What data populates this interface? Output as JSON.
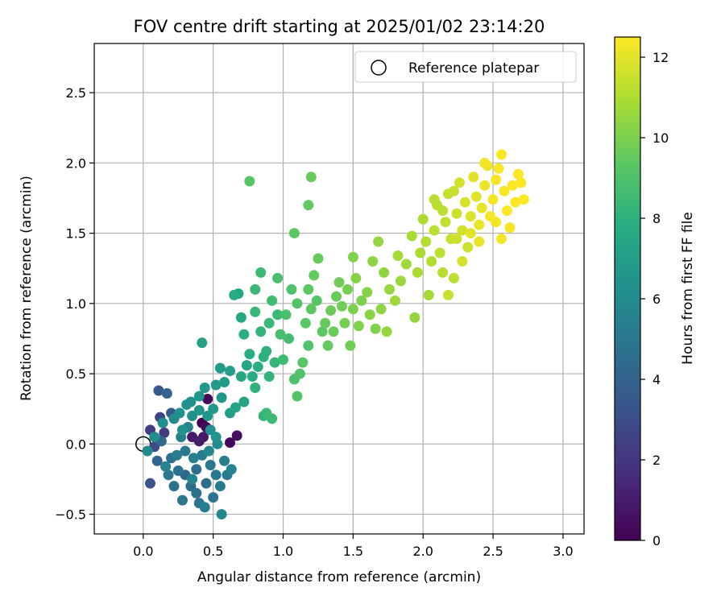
{
  "chart_data": {
    "type": "scatter",
    "title": "FOV centre drift starting at 2025/01/02 23:14:20",
    "xlabel": "Angular distance from reference (arcmin)",
    "ylabel": "Rotation from reference (arcmin)",
    "xlim": [
      -0.35,
      3.15
    ],
    "ylim": [
      -0.64,
      2.85
    ],
    "xticks": [
      0.0,
      0.5,
      1.0,
      1.5,
      2.0,
      2.5,
      3.0
    ],
    "xtick_labels": [
      "0.0",
      "0.5",
      "1.0",
      "1.5",
      "2.0",
      "2.5",
      "3.0"
    ],
    "yticks": [
      -0.5,
      0.0,
      0.5,
      1.0,
      1.5,
      2.0,
      2.5
    ],
    "ytick_labels": [
      "−0.5",
      "0.0",
      "0.5",
      "1.0",
      "1.5",
      "2.0",
      "2.5"
    ],
    "grid": true,
    "legend": {
      "placement": "top-right",
      "entries": [
        {
          "label": "Reference platepar",
          "marker": "open-circle",
          "x": 0.0,
          "y": 0.0
        }
      ]
    },
    "colorbar": {
      "label": "Hours from first FF file",
      "range": [
        0,
        12.5
      ],
      "ticks": [
        0,
        2,
        4,
        6,
        8,
        10,
        12
      ],
      "tick_labels": [
        "0",
        "2",
        "4",
        "6",
        "8",
        "10",
        "12"
      ],
      "colormap": "viridis"
    },
    "points": [
      {
        "x": 0.42,
        "y": 0.15,
        "h": 0.0
      },
      {
        "x": 0.46,
        "y": 0.32,
        "h": 0.2
      },
      {
        "x": 0.45,
        "y": 0.12,
        "h": 0.4
      },
      {
        "x": 0.62,
        "y": 0.01,
        "h": 0.3
      },
      {
        "x": 0.67,
        "y": 0.06,
        "h": 0.5
      },
      {
        "x": 0.43,
        "y": 0.05,
        "h": 0.8
      },
      {
        "x": 0.35,
        "y": 0.05,
        "h": 0.9
      },
      {
        "x": 0.4,
        "y": 0.02,
        "h": 1.0
      },
      {
        "x": 0.05,
        "y": 0.1,
        "h": 2.3
      },
      {
        "x": 0.12,
        "y": 0.19,
        "h": 2.6
      },
      {
        "x": 0.15,
        "y": 0.08,
        "h": 2.2
      },
      {
        "x": 0.08,
        "y": -0.02,
        "h": 2.9
      },
      {
        "x": 0.05,
        "y": -0.28,
        "h": 3.2
      },
      {
        "x": 0.11,
        "y": 0.38,
        "h": 3.4
      },
      {
        "x": 0.17,
        "y": 0.36,
        "h": 4.0
      },
      {
        "x": 0.2,
        "y": 0.22,
        "h": 3.6
      },
      {
        "x": 0.1,
        "y": -0.12,
        "h": 4.1
      },
      {
        "x": 0.13,
        "y": 0.02,
        "h": 4.3
      },
      {
        "x": 0.2,
        "y": -0.1,
        "h": 4.6
      },
      {
        "x": 0.25,
        "y": -0.19,
        "h": 4.8
      },
      {
        "x": 0.3,
        "y": -0.22,
        "h": 4.2
      },
      {
        "x": 0.34,
        "y": -0.3,
        "h": 4.4
      },
      {
        "x": 0.38,
        "y": -0.35,
        "h": 4.7
      },
      {
        "x": 0.4,
        "y": -0.42,
        "h": 4.9
      },
      {
        "x": 0.45,
        "y": -0.28,
        "h": 4.5
      },
      {
        "x": 0.48,
        "y": -0.15,
        "h": 5.0
      },
      {
        "x": 0.52,
        "y": -0.22,
        "h": 5.1
      },
      {
        "x": 0.55,
        "y": -0.3,
        "h": 5.2
      },
      {
        "x": 0.5,
        "y": -0.38,
        "h": 4.8
      },
      {
        "x": 0.44,
        "y": -0.45,
        "h": 5.3
      },
      {
        "x": 0.36,
        "y": -0.1,
        "h": 5.4
      },
      {
        "x": 0.3,
        "y": -0.05,
        "h": 5.0
      },
      {
        "x": 0.27,
        "y": 0.05,
        "h": 5.5
      },
      {
        "x": 0.32,
        "y": 0.12,
        "h": 5.6
      },
      {
        "x": 0.38,
        "y": -0.18,
        "h": 4.6
      },
      {
        "x": 0.42,
        "y": -0.08,
        "h": 5.2
      },
      {
        "x": 0.58,
        "y": -0.12,
        "h": 5.4
      },
      {
        "x": 0.6,
        "y": -0.22,
        "h": 5.1
      },
      {
        "x": 0.63,
        "y": -0.18,
        "h": 5.6
      },
      {
        "x": 0.56,
        "y": -0.5,
        "h": 5.8
      },
      {
        "x": 0.28,
        "y": -0.4,
        "h": 4.9
      },
      {
        "x": 0.22,
        "y": -0.3,
        "h": 4.7
      },
      {
        "x": 0.18,
        "y": -0.22,
        "h": 5.0
      },
      {
        "x": 0.24,
        "y": -0.08,
        "h": 5.3
      },
      {
        "x": 0.16,
        "y": -0.16,
        "h": 5.6
      },
      {
        "x": 0.35,
        "y": -0.25,
        "h": 5.7
      },
      {
        "x": 0.47,
        "y": -0.05,
        "h": 5.9
      },
      {
        "x": 0.53,
        "y": 0.0,
        "h": 6.0
      },
      {
        "x": 0.03,
        "y": -0.05,
        "h": 6.0
      },
      {
        "x": 0.08,
        "y": 0.05,
        "h": 6.1
      },
      {
        "x": 0.14,
        "y": 0.15,
        "h": 6.2
      },
      {
        "x": 0.22,
        "y": 0.18,
        "h": 6.0
      },
      {
        "x": 0.26,
        "y": 0.22,
        "h": 6.3
      },
      {
        "x": 0.31,
        "y": 0.28,
        "h": 6.4
      },
      {
        "x": 0.35,
        "y": 0.2,
        "h": 6.2
      },
      {
        "x": 0.4,
        "y": 0.24,
        "h": 6.5
      },
      {
        "x": 0.46,
        "y": 0.2,
        "h": 6.6
      },
      {
        "x": 0.5,
        "y": 0.25,
        "h": 6.7
      },
      {
        "x": 0.52,
        "y": 0.42,
        "h": 6.8
      },
      {
        "x": 0.56,
        "y": 0.33,
        "h": 6.6
      },
      {
        "x": 0.58,
        "y": 0.44,
        "h": 6.9
      },
      {
        "x": 0.62,
        "y": 0.52,
        "h": 7.0
      },
      {
        "x": 0.55,
        "y": 0.54,
        "h": 6.8
      },
      {
        "x": 0.44,
        "y": 0.4,
        "h": 6.7
      },
      {
        "x": 0.4,
        "y": 0.34,
        "h": 6.5
      },
      {
        "x": 0.34,
        "y": 0.3,
        "h": 6.3
      },
      {
        "x": 0.28,
        "y": 0.1,
        "h": 6.4
      },
      {
        "x": 0.48,
        "y": 0.1,
        "h": 6.2
      },
      {
        "x": 0.52,
        "y": 0.05,
        "h": 6.4
      },
      {
        "x": 0.42,
        "y": 0.72,
        "h": 7.2
      },
      {
        "x": 0.62,
        "y": 0.22,
        "h": 7.0
      },
      {
        "x": 0.66,
        "y": 0.26,
        "h": 7.3
      },
      {
        "x": 0.72,
        "y": 0.3,
        "h": 7.4
      },
      {
        "x": 0.7,
        "y": 0.48,
        "h": 7.5
      },
      {
        "x": 0.74,
        "y": 0.56,
        "h": 7.4
      },
      {
        "x": 0.7,
        "y": 0.9,
        "h": 7.6
      },
      {
        "x": 0.65,
        "y": 1.06,
        "h": 7.7
      },
      {
        "x": 0.68,
        "y": 1.07,
        "h": 7.5
      },
      {
        "x": 0.78,
        "y": 0.48,
        "h": 7.8
      },
      {
        "x": 0.82,
        "y": 0.55,
        "h": 7.9
      },
      {
        "x": 0.86,
        "y": 0.62,
        "h": 8.0
      },
      {
        "x": 0.8,
        "y": 0.4,
        "h": 8.1
      },
      {
        "x": 0.9,
        "y": 0.48,
        "h": 8.2
      },
      {
        "x": 0.88,
        "y": 0.66,
        "h": 8.0
      },
      {
        "x": 0.76,
        "y": 0.64,
        "h": 7.8
      },
      {
        "x": 0.72,
        "y": 0.78,
        "h": 7.9
      },
      {
        "x": 0.84,
        "y": 0.8,
        "h": 8.2
      },
      {
        "x": 0.8,
        "y": 0.94,
        "h": 8.3
      },
      {
        "x": 0.9,
        "y": 0.86,
        "h": 8.4
      },
      {
        "x": 0.84,
        "y": 1.22,
        "h": 8.5
      },
      {
        "x": 0.8,
        "y": 1.1,
        "h": 8.4
      },
      {
        "x": 0.92,
        "y": 1.02,
        "h": 8.6
      },
      {
        "x": 0.96,
        "y": 0.92,
        "h": 8.5
      },
      {
        "x": 0.94,
        "y": 0.58,
        "h": 8.3
      },
      {
        "x": 0.88,
        "y": 0.22,
        "h": 8.4
      },
      {
        "x": 0.86,
        "y": 0.2,
        "h": 8.2
      },
      {
        "x": 0.92,
        "y": 0.18,
        "h": 8.5
      },
      {
        "x": 1.0,
        "y": 0.6,
        "h": 8.6
      },
      {
        "x": 1.04,
        "y": 0.75,
        "h": 8.7
      },
      {
        "x": 0.98,
        "y": 0.78,
        "h": 8.8
      },
      {
        "x": 1.02,
        "y": 0.92,
        "h": 8.9
      },
      {
        "x": 1.06,
        "y": 1.1,
        "h": 9.0
      },
      {
        "x": 0.96,
        "y": 1.18,
        "h": 8.8
      },
      {
        "x": 1.1,
        "y": 1.0,
        "h": 9.1
      },
      {
        "x": 1.08,
        "y": 0.46,
        "h": 8.9
      },
      {
        "x": 1.12,
        "y": 0.5,
        "h": 9.0
      },
      {
        "x": 1.1,
        "y": 0.34,
        "h": 9.1
      },
      {
        "x": 1.14,
        "y": 0.58,
        "h": 9.2
      },
      {
        "x": 1.18,
        "y": 0.7,
        "h": 9.0
      },
      {
        "x": 1.16,
        "y": 0.86,
        "h": 9.3
      },
      {
        "x": 1.2,
        "y": 0.96,
        "h": 9.4
      },
      {
        "x": 1.24,
        "y": 1.02,
        "h": 9.2
      },
      {
        "x": 1.18,
        "y": 1.1,
        "h": 9.3
      },
      {
        "x": 1.22,
        "y": 1.2,
        "h": 9.5
      },
      {
        "x": 1.25,
        "y": 1.32,
        "h": 9.6
      },
      {
        "x": 1.08,
        "y": 1.5,
        "h": 9.4
      },
      {
        "x": 1.18,
        "y": 1.7,
        "h": 9.5
      },
      {
        "x": 1.2,
        "y": 1.9,
        "h": 9.6
      },
      {
        "x": 0.76,
        "y": 1.87,
        "h": 9.2
      },
      {
        "x": 1.28,
        "y": 0.8,
        "h": 9.4
      },
      {
        "x": 1.32,
        "y": 0.7,
        "h": 9.5
      },
      {
        "x": 1.3,
        "y": 0.86,
        "h": 9.6
      },
      {
        "x": 1.34,
        "y": 0.95,
        "h": 9.7
      },
      {
        "x": 1.38,
        "y": 1.05,
        "h": 9.6
      },
      {
        "x": 1.42,
        "y": 0.98,
        "h": 9.8
      },
      {
        "x": 1.46,
        "y": 1.1,
        "h": 9.9
      },
      {
        "x": 1.4,
        "y": 1.15,
        "h": 9.8
      },
      {
        "x": 1.36,
        "y": 0.8,
        "h": 9.7
      },
      {
        "x": 1.44,
        "y": 0.86,
        "h": 9.9
      },
      {
        "x": 1.5,
        "y": 0.96,
        "h": 10.0
      },
      {
        "x": 1.48,
        "y": 0.7,
        "h": 9.8
      },
      {
        "x": 1.54,
        "y": 0.84,
        "h": 10.1
      },
      {
        "x": 1.56,
        "y": 1.02,
        "h": 10.0
      },
      {
        "x": 1.52,
        "y": 1.18,
        "h": 10.2
      },
      {
        "x": 1.5,
        "y": 1.33,
        "h": 10.1
      },
      {
        "x": 1.6,
        "y": 1.08,
        "h": 10.2
      },
      {
        "x": 1.62,
        "y": 0.92,
        "h": 10.3
      },
      {
        "x": 1.66,
        "y": 0.82,
        "h": 10.1
      },
      {
        "x": 1.7,
        "y": 0.96,
        "h": 10.4
      },
      {
        "x": 1.64,
        "y": 1.3,
        "h": 10.3
      },
      {
        "x": 1.68,
        "y": 1.44,
        "h": 10.5
      },
      {
        "x": 1.72,
        "y": 1.22,
        "h": 10.4
      },
      {
        "x": 1.76,
        "y": 1.1,
        "h": 10.6
      },
      {
        "x": 1.74,
        "y": 0.8,
        "h": 10.5
      },
      {
        "x": 1.8,
        "y": 1.02,
        "h": 10.7
      },
      {
        "x": 1.84,
        "y": 1.16,
        "h": 10.6
      },
      {
        "x": 1.82,
        "y": 1.34,
        "h": 10.8
      },
      {
        "x": 1.88,
        "y": 1.28,
        "h": 10.7
      },
      {
        "x": 1.92,
        "y": 1.48,
        "h": 10.9
      },
      {
        "x": 1.94,
        "y": 0.9,
        "h": 10.5
      },
      {
        "x": 1.96,
        "y": 1.22,
        "h": 10.9
      },
      {
        "x": 1.98,
        "y": 1.36,
        "h": 11.0
      },
      {
        "x": 2.0,
        "y": 1.6,
        "h": 11.0
      },
      {
        "x": 2.02,
        "y": 1.44,
        "h": 11.1
      },
      {
        "x": 2.04,
        "y": 1.06,
        "h": 10.8
      },
      {
        "x": 2.06,
        "y": 1.3,
        "h": 11.1
      },
      {
        "x": 2.08,
        "y": 1.52,
        "h": 11.2
      },
      {
        "x": 2.1,
        "y": 1.7,
        "h": 11.2
      },
      {
        "x": 2.12,
        "y": 1.36,
        "h": 11.3
      },
      {
        "x": 2.14,
        "y": 1.22,
        "h": 11.2
      },
      {
        "x": 2.16,
        "y": 1.58,
        "h": 11.4
      },
      {
        "x": 2.18,
        "y": 1.78,
        "h": 11.4
      },
      {
        "x": 2.2,
        "y": 1.46,
        "h": 11.5
      },
      {
        "x": 2.22,
        "y": 1.18,
        "h": 11.3
      },
      {
        "x": 2.24,
        "y": 1.64,
        "h": 11.6
      },
      {
        "x": 2.26,
        "y": 1.86,
        "h": 11.7
      },
      {
        "x": 2.28,
        "y": 1.52,
        "h": 11.7
      },
      {
        "x": 2.3,
        "y": 1.72,
        "h": 11.8
      },
      {
        "x": 2.32,
        "y": 1.4,
        "h": 11.6
      },
      {
        "x": 2.34,
        "y": 1.62,
        "h": 11.9
      },
      {
        "x": 2.36,
        "y": 1.9,
        "h": 12.0
      },
      {
        "x": 2.38,
        "y": 1.76,
        "h": 12.0
      },
      {
        "x": 2.4,
        "y": 1.56,
        "h": 12.1
      },
      {
        "x": 2.42,
        "y": 1.68,
        "h": 12.1
      },
      {
        "x": 2.44,
        "y": 1.84,
        "h": 12.2
      },
      {
        "x": 2.46,
        "y": 1.98,
        "h": 12.2
      },
      {
        "x": 2.48,
        "y": 1.62,
        "h": 12.3
      },
      {
        "x": 2.5,
        "y": 1.74,
        "h": 12.3
      },
      {
        "x": 2.52,
        "y": 1.88,
        "h": 12.4
      },
      {
        "x": 2.54,
        "y": 1.96,
        "h": 12.4
      },
      {
        "x": 2.56,
        "y": 2.06,
        "h": 12.5
      },
      {
        "x": 2.58,
        "y": 1.8,
        "h": 12.4
      },
      {
        "x": 2.6,
        "y": 1.66,
        "h": 12.5
      },
      {
        "x": 2.62,
        "y": 1.54,
        "h": 12.4
      },
      {
        "x": 2.64,
        "y": 1.84,
        "h": 12.5
      },
      {
        "x": 2.66,
        "y": 1.72,
        "h": 12.5
      },
      {
        "x": 2.68,
        "y": 1.92,
        "h": 12.5
      },
      {
        "x": 2.7,
        "y": 1.86,
        "h": 12.5
      },
      {
        "x": 2.72,
        "y": 1.74,
        "h": 12.5
      },
      {
        "x": 2.44,
        "y": 2.0,
        "h": 12.3
      },
      {
        "x": 2.34,
        "y": 1.5,
        "h": 12.0
      },
      {
        "x": 2.28,
        "y": 1.3,
        "h": 11.7
      },
      {
        "x": 2.18,
        "y": 1.06,
        "h": 11.5
      },
      {
        "x": 2.24,
        "y": 1.46,
        "h": 11.6
      },
      {
        "x": 2.4,
        "y": 1.44,
        "h": 12.1
      },
      {
        "x": 2.52,
        "y": 1.58,
        "h": 12.3
      },
      {
        "x": 2.56,
        "y": 1.46,
        "h": 12.4
      },
      {
        "x": 2.08,
        "y": 1.74,
        "h": 11.2
      },
      {
        "x": 2.14,
        "y": 1.66,
        "h": 11.3
      },
      {
        "x": 2.22,
        "y": 1.8,
        "h": 11.5
      }
    ]
  }
}
